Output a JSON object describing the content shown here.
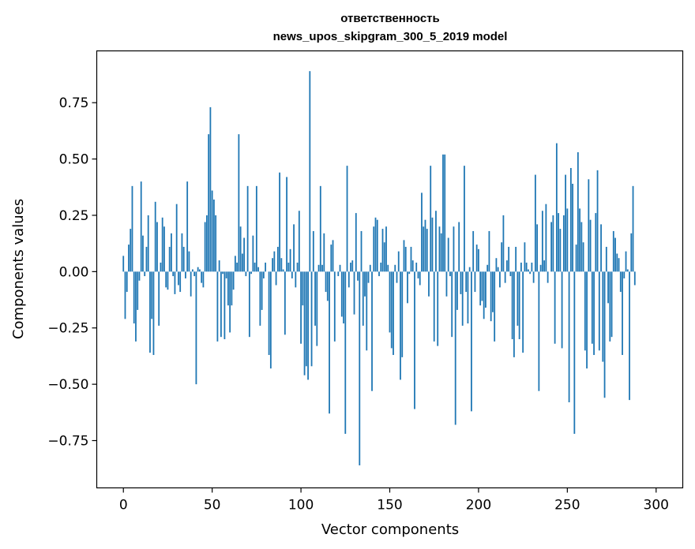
{
  "chart_data": {
    "type": "bar",
    "title": "ответственность",
    "subtitle": "news_upos_skipgram_300_5_2019 model",
    "xlabel": "Vector components",
    "ylabel": "Components values",
    "xlim": [
      -15,
      315
    ],
    "ylim": [
      -0.96,
      0.98
    ],
    "xticks": [
      0,
      50,
      100,
      150,
      200,
      250,
      300
    ],
    "yticks": [
      -0.75,
      -0.5,
      -0.25,
      0.0,
      0.25,
      0.5,
      0.75
    ],
    "xtick_labels": [
      "0",
      "50",
      "100",
      "150",
      "200",
      "250",
      "300"
    ],
    "ytick_labels": [
      "−0.75",
      "−0.50",
      "−0.25",
      "0.00",
      "0.25",
      "0.50",
      "0.75"
    ],
    "bar_color": "#1f77b4",
    "values": [
      0.07,
      -0.21,
      -0.09,
      0.12,
      0.19,
      0.38,
      -0.23,
      -0.31,
      -0.17,
      -0.04,
      0.4,
      0.16,
      -0.02,
      0.11,
      0.25,
      -0.36,
      -0.21,
      -0.37,
      0.31,
      0.22,
      -0.24,
      0.04,
      0.24,
      0.2,
      -0.07,
      -0.08,
      0.11,
      0.17,
      -0.02,
      -0.1,
      0.3,
      -0.06,
      -0.09,
      0.17,
      0.11,
      -0.03,
      0.4,
      0.09,
      -0.11,
      0.01,
      -0.02,
      -0.5,
      0.02,
      0.01,
      -0.05,
      -0.07,
      0.22,
      0.25,
      0.61,
      0.73,
      0.36,
      0.32,
      0.25,
      -0.31,
      0.05,
      -0.29,
      -0.01,
      -0.3,
      -0.03,
      -0.15,
      -0.27,
      -0.15,
      -0.08,
      0.07,
      0.04,
      0.61,
      0.2,
      0.08,
      0.15,
      -0.02,
      0.38,
      -0.29,
      -0.01,
      0.16,
      0.04,
      0.38,
      0.02,
      -0.24,
      -0.17,
      -0.03,
      0.04,
      0.0,
      -0.37,
      -0.43,
      0.06,
      0.09,
      -0.06,
      0.11,
      0.44,
      0.06,
      0.01,
      -0.28,
      0.42,
      0.04,
      0.1,
      -0.03,
      0.21,
      -0.07,
      0.04,
      0.27,
      -0.32,
      -0.15,
      -0.46,
      -0.42,
      -0.48,
      0.89,
      -0.42,
      0.18,
      -0.24,
      -0.33,
      0.03,
      0.38,
      0.03,
      0.17,
      -0.09,
      -0.13,
      -0.63,
      0.12,
      0.14,
      -0.31,
      0.0,
      -0.02,
      0.03,
      -0.2,
      -0.23,
      -0.72,
      0.47,
      -0.07,
      0.04,
      0.05,
      -0.19,
      0.26,
      -0.04,
      -0.86,
      0.18,
      -0.24,
      -0.11,
      -0.35,
      -0.05,
      0.03,
      -0.53,
      0.2,
      0.24,
      0.23,
      -0.02,
      0.04,
      0.19,
      0.13,
      0.2,
      0.03,
      -0.27,
      -0.34,
      -0.37,
      0.03,
      -0.05,
      0.09,
      -0.48,
      -0.38,
      0.14,
      0.11,
      -0.14,
      -0.01,
      0.11,
      0.05,
      -0.61,
      0.04,
      -0.03,
      -0.06,
      0.35,
      0.2,
      0.23,
      0.19,
      -0.11,
      0.47,
      0.24,
      -0.31,
      0.27,
      -0.33,
      0.2,
      0.17,
      0.52,
      0.52,
      -0.11,
      0.15,
      -0.02,
      -0.29,
      0.2,
      -0.68,
      -0.17,
      0.22,
      -0.1,
      -0.24,
      0.47,
      -0.09,
      -0.23,
      0.02,
      -0.62,
      0.18,
      -0.09,
      0.12,
      0.1,
      -0.15,
      -0.13,
      -0.21,
      -0.16,
      0.03,
      0.18,
      -0.22,
      -0.18,
      -0.31,
      0.06,
      0.02,
      -0.07,
      0.13,
      0.25,
      -0.05,
      0.05,
      0.11,
      -0.02,
      -0.3,
      -0.38,
      0.11,
      -0.24,
      -0.3,
      0.04,
      -0.36,
      0.13,
      0.04,
      0.01,
      -0.01,
      0.04,
      -0.05,
      0.43,
      0.21,
      -0.53,
      0.03,
      0.27,
      0.05,
      0.3,
      -0.05,
      0.0,
      0.22,
      0.25,
      -0.32,
      0.57,
      0.26,
      0.19,
      -0.34,
      0.25,
      0.43,
      0.28,
      -0.58,
      0.46,
      0.39,
      -0.72,
      0.12,
      0.53,
      0.28,
      0.22,
      0.13,
      -0.35,
      -0.43,
      0.41,
      0.23,
      -0.32,
      -0.37,
      0.26,
      0.45,
      -0.35,
      0.21,
      -0.4,
      -0.56,
      0.11,
      -0.14,
      -0.31,
      -0.29,
      0.18,
      0.15,
      0.08,
      0.06,
      -0.09,
      -0.37,
      -0.03,
      0.09,
      0.01,
      -0.57,
      0.17,
      0.38,
      -0.06
    ]
  }
}
